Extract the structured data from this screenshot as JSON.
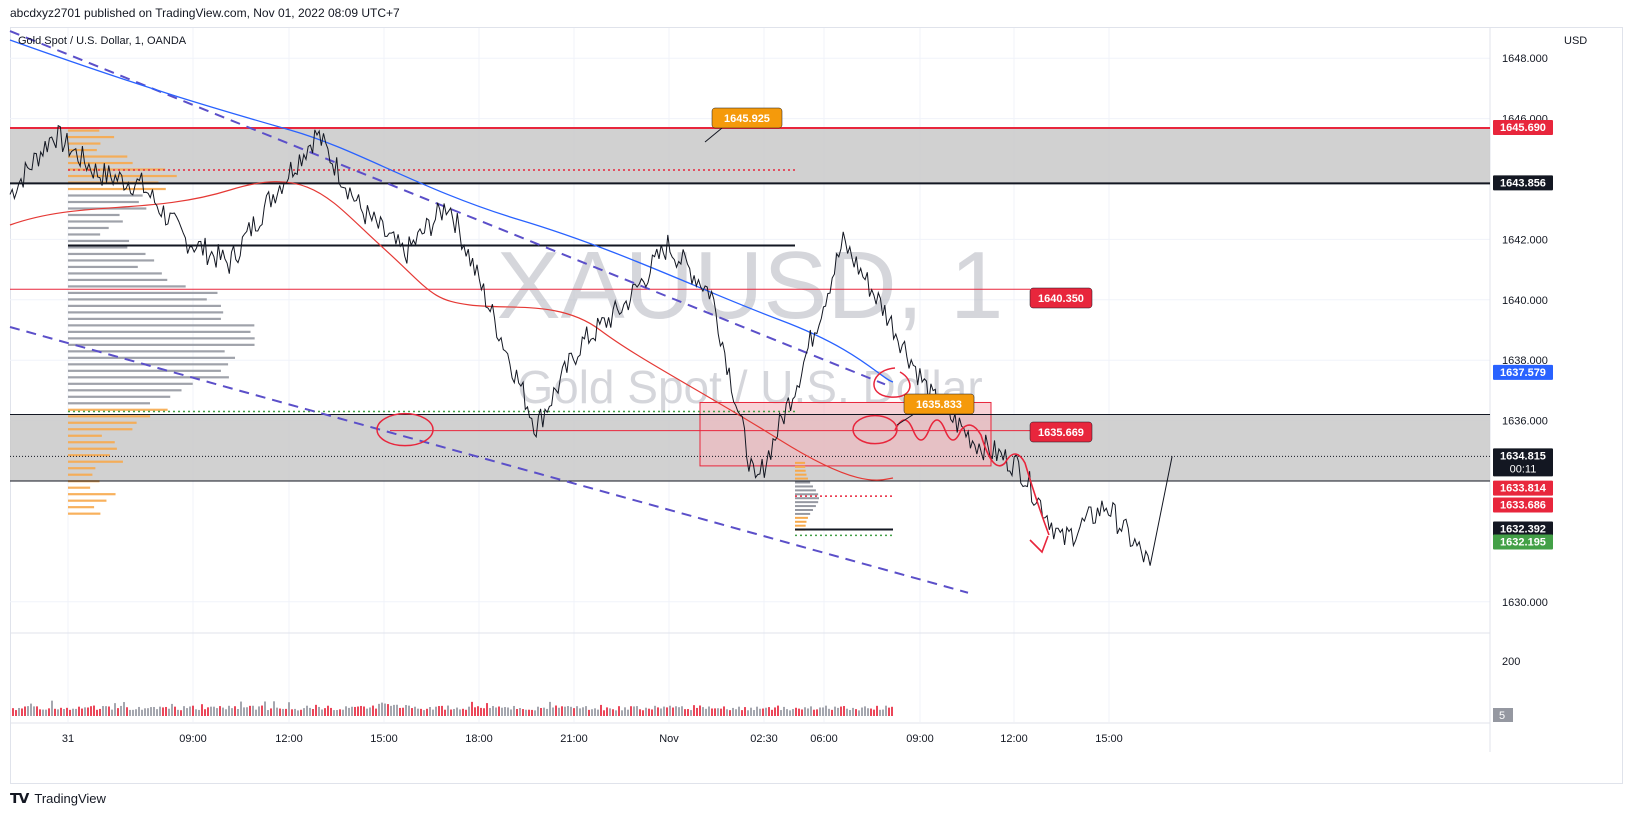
{
  "header": {
    "published": "abcdxyz2701 published on TradingView.com, Nov 01, 2022 08:09 UTC+7"
  },
  "symbol_label": "Gold Spot / U.S. Dollar, 1, OANDA",
  "watermark": {
    "symbol": "XAUUSD, 1",
    "name": "Gold Spot / U.S. Dollar"
  },
  "currency": "USD",
  "footer": {
    "brand": "TradingView"
  },
  "colors": {
    "price_line": "#131722",
    "ma_blue": "#2962ff",
    "ma_red": "#e53935",
    "zone": "#c9c9c9",
    "trend": "#5b4fc9",
    "volume_profile_orange": "#f7a94b",
    "volume_profile_gray": "#9598a1",
    "annotation_red": "#e8263c",
    "tag_orange": "#f59a0b"
  },
  "chart_data": {
    "type": "line",
    "title": "Gold Spot / U.S. Dollar, 1, OANDA",
    "y_axis": {
      "range": [
        1629.0,
        1649.0
      ],
      "ticks": [
        "1648.000",
        "1646.000",
        "1642.000",
        "1640.000",
        "1638.000",
        "1636.000",
        "1630.000"
      ]
    },
    "x_axis": {
      "ticks": [
        "31",
        "09:00",
        "12:00",
        "15:00",
        "18:00",
        "21:00",
        "Nov",
        "02:30",
        "06:00",
        "09:00",
        "12:00",
        "15:00"
      ]
    },
    "price_series": {
      "name": "XAUUSD",
      "time_index": [
        0,
        8,
        16,
        24,
        32,
        40,
        48,
        56,
        64,
        72,
        80,
        88,
        96,
        104,
        112,
        120,
        128,
        136,
        144,
        152,
        160,
        168,
        176,
        184,
        192,
        200,
        208
      ],
      "values": [
        1643.5,
        1645.5,
        1644.2,
        1643.8,
        1642.0,
        1641.2,
        1643.5,
        1645.5,
        1643.0,
        1641.5,
        1643.2,
        1639.5,
        1635.8,
        1638.5,
        1639.8,
        1641.8,
        1640.2,
        1633.8,
        1637.5,
        1641.9,
        1639.5,
        1636.8,
        1635.3,
        1634.5,
        1632.0,
        1633.2,
        1631.2
      ]
    },
    "horizontal_levels": [
      1645.69,
      1643.856,
      1641.8,
      1640.35,
      1636.2,
      1635.669,
      1634.815,
      1634.0,
      1632.392
    ],
    "price_labels": [
      {
        "value": "1645.690",
        "color": "#e8263c"
      },
      {
        "value": "1643.856",
        "color": "#131722"
      },
      {
        "value": "1637.579",
        "color": "#2962ff"
      },
      {
        "value": "1634.815",
        "sub": "00:11",
        "color": "#131722"
      },
      {
        "value": "1633.814",
        "color": "#e8263c"
      },
      {
        "value": "1633.686",
        "color": "#e8263c"
      },
      {
        "value": "1632.392",
        "color": "#131722"
      },
      {
        "value": "1632.195",
        "color": "#43a047"
      }
    ],
    "annotations": [
      {
        "text": "1645.925",
        "color": "#f59a0b"
      },
      {
        "text": "1640.350",
        "color": "#e8263c"
      },
      {
        "text": "1635.833",
        "color": "#f59a0b"
      },
      {
        "text": "1635.669",
        "color": "#e8263c"
      }
    ],
    "volume": {
      "ticks": [
        "200"
      ],
      "last_value": "5"
    },
    "legend": "none",
    "grid": true
  }
}
